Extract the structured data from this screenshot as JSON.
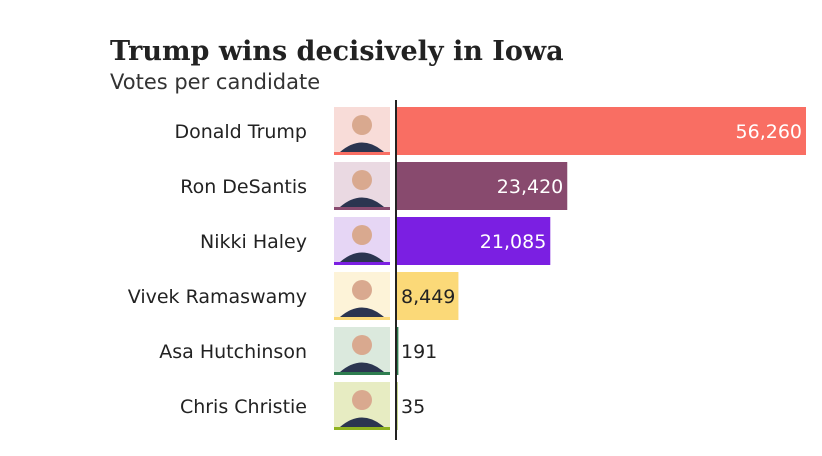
{
  "chart_data": {
    "type": "bar",
    "orientation": "horizontal",
    "title": "Trump wins decisively in Iowa",
    "subtitle": "Votes per candidate",
    "categories": [
      "Donald Trump",
      "Ron DeSantis",
      "Nikki Haley",
      "Vivek Ramaswamy",
      "Asa Hutchinson",
      "Chris Christie"
    ],
    "values": [
      56260,
      23420,
      21085,
      8449,
      191,
      35
    ],
    "labels": [
      "56,260",
      "23,420",
      "21,085",
      "8,449",
      "191",
      "35"
    ],
    "colors": [
      "#f96e63",
      "#884a6e",
      "#7b1fe2",
      "#fbd978",
      "#2e7d4f",
      "#8fb21f"
    ],
    "photo_backgrounds": [
      "#f8dcd8",
      "#ead9e2",
      "#e6d6f5",
      "#fdf3d8",
      "#dbe9dd",
      "#e7ecc2"
    ],
    "xlim": [
      0,
      56260
    ],
    "grid": false,
    "legend": "none"
  }
}
